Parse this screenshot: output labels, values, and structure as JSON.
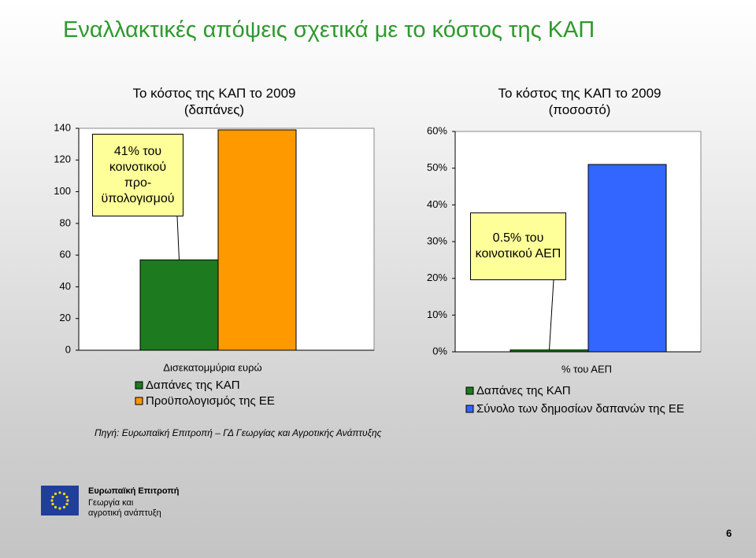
{
  "title": "Εναλλακτικές απόψεις σχετικά με το κόστος της ΚΑΠ",
  "chart_data": [
    {
      "type": "bar",
      "title": "Το κόστος της ΚΑΠ το 2009 (δαπάνες)",
      "x_label": "Δισεκατομμύρια ευρώ",
      "categories": [
        null
      ],
      "series": [
        {
          "name": "Δαπάνες της ΚΑΠ",
          "color": "#1e7a1e",
          "values": [
            57
          ]
        },
        {
          "name": "Προϋπολογισμός της ΕΕ",
          "color": "#ff9900",
          "values": [
            139
          ]
        }
      ],
      "ylim": [
        0,
        140
      ],
      "yticks": [
        0,
        20,
        40,
        60,
        80,
        100,
        120,
        140
      ],
      "annotation": "41% του κοινοτικού προ-ϋπολογισμού"
    },
    {
      "type": "bar",
      "title": "Το κόστος της ΚΑΠ το 2009 (ποσοστό)",
      "x_label": "% του ΑΕΠ",
      "categories": [
        null
      ],
      "series": [
        {
          "name": "Δαπάνες της ΚΑΠ",
          "color": "#1e7a1e",
          "values": [
            0.5
          ]
        },
        {
          "name": "Σύνολο των δημοσίων δαπανών της ΕΕ",
          "color": "#3366ff",
          "values": [
            51
          ]
        }
      ],
      "ylim": [
        0,
        60
      ],
      "yticks": [
        {
          "value": 0,
          "label": "0%"
        },
        {
          "value": 10,
          "label": "10%"
        },
        {
          "value": 20,
          "label": "20%"
        },
        {
          "value": 30,
          "label": "30%"
        },
        {
          "value": 40,
          "label": "40%"
        },
        {
          "value": 50,
          "label": "50%"
        },
        {
          "value": 60,
          "label": "60%"
        }
      ],
      "annotation": "0.5% του κοινοτικού ΑΕΠ"
    }
  ],
  "source": "Πηγή: Ευρωπαϊκή Επιτροπή – ΓΔ Γεωργίας και Αγροτικής Ανάπτυξης",
  "logo": {
    "name": "Ευρωπαϊκή Επιτροπή",
    "line1": "Γεωργία και",
    "line2": "αγροτική ανάπτυξη"
  },
  "page_number": "6"
}
